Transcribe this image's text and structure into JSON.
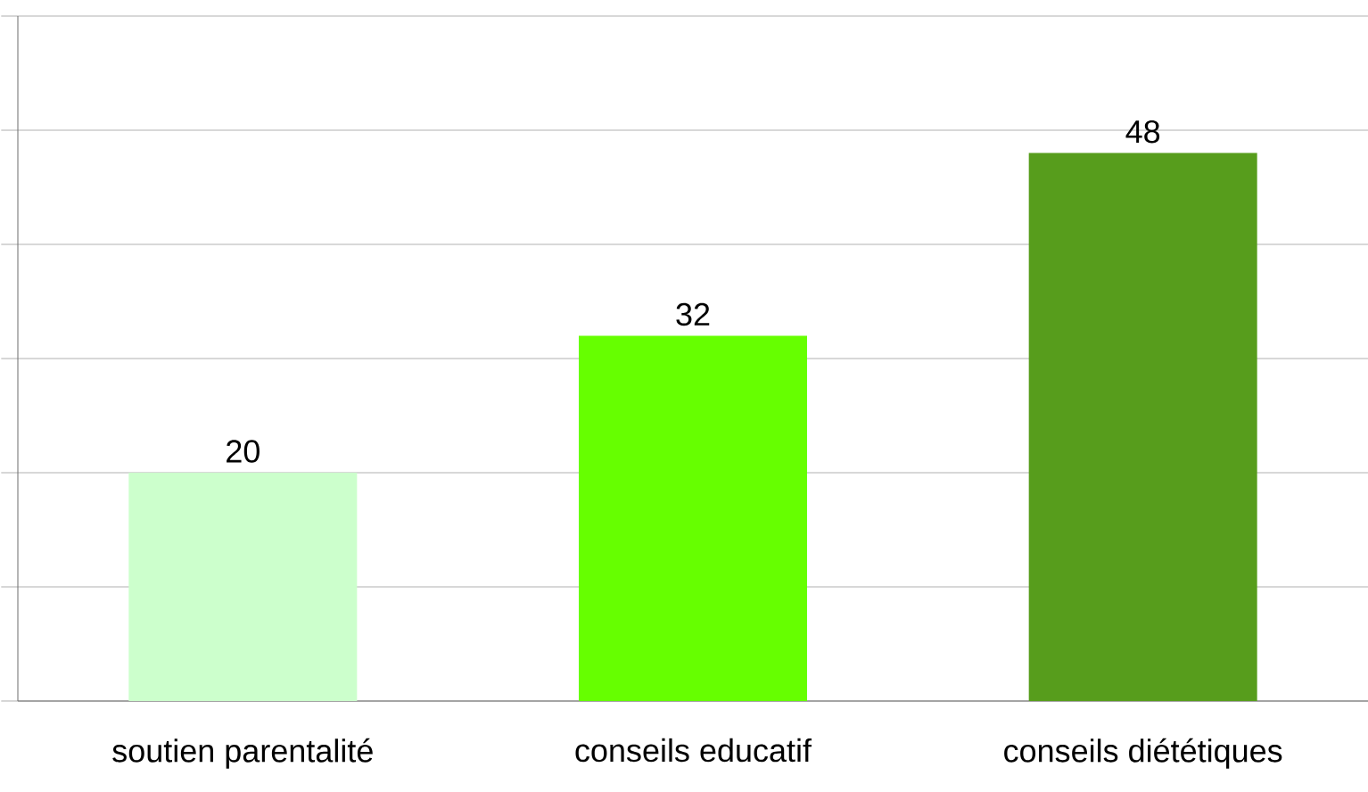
{
  "chart_data": {
    "type": "bar",
    "categories": [
      "soutien parentalité",
      "conseils educatif",
      "conseils diététiques"
    ],
    "values": [
      20,
      32,
      48
    ],
    "colors": [
      "#ccffcc",
      "#66ff00",
      "#579d1c"
    ],
    "ylim": [
      0,
      60
    ],
    "yticks": [
      {
        "value": 0,
        "label": null
      },
      {
        "value": 10,
        "label": null
      },
      {
        "value": 20,
        "label": null
      },
      {
        "value": 30,
        "label": null
      },
      {
        "value": 40,
        "label": null
      },
      {
        "value": 50,
        "label": null
      },
      {
        "value": 60,
        "label": null
      }
    ],
    "tick_labels": "x",
    "grid": "y",
    "data_labels": true
  }
}
